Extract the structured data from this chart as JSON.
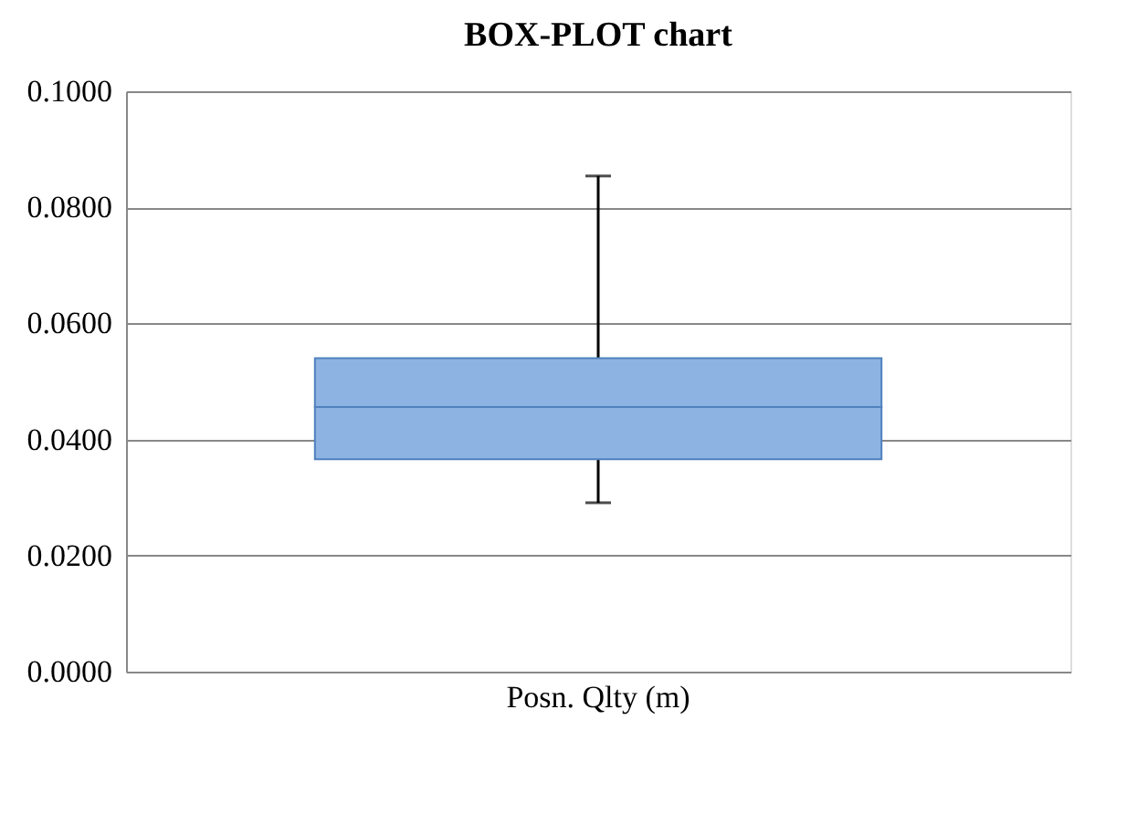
{
  "chart_data": {
    "type": "box",
    "title": "BOX-PLOT chart",
    "categories": [
      "Posn. Qlty (m)"
    ],
    "boxes": [
      {
        "low": 0.0291,
        "q1": 0.0366,
        "median": 0.0456,
        "q3": 0.054,
        "high": 0.0854
      }
    ],
    "color": "#8db3e2",
    "ylim": [
      0,
      0.1
    ],
    "yticks": [
      {
        "value": 0,
        "label": "0.0000"
      },
      {
        "value": 0.02,
        "label": "0.0200"
      },
      {
        "value": 0.04,
        "label": "0.0400"
      },
      {
        "value": 0.06,
        "label": "0.0600"
      },
      {
        "value": 0.08,
        "label": "0.0800"
      },
      {
        "value": 0.1,
        "label": "0.1000"
      }
    ],
    "grid": "y"
  }
}
